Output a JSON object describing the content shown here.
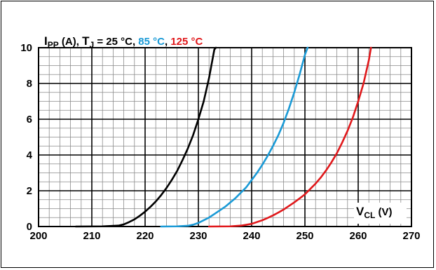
{
  "chart_data": {
    "type": "line",
    "xlim": [
      200,
      270
    ],
    "ylim": [
      0,
      10
    ],
    "x_ticks": [
      200,
      210,
      220,
      230,
      240,
      250,
      260,
      270
    ],
    "y_ticks": [
      0,
      2,
      4,
      6,
      8,
      10
    ],
    "x_ticks_text": [
      "200",
      "210",
      "220",
      "230",
      "240",
      "250",
      "260",
      "270"
    ],
    "y_ticks_text": [
      "0",
      "2",
      "4",
      "6",
      "8",
      "10"
    ],
    "grid": true,
    "ylabel": {
      "prefix_main": "I",
      "prefix_sub": "PP",
      "unit": " (A), ",
      "tj_main": "T",
      "tj_sub": "J",
      "eq": " = ",
      "t1": "25 °C",
      "sep1": ", ",
      "t2": "85 °C",
      "sep2": ", ",
      "t3": "125 °C"
    },
    "xlabel": {
      "main": "V",
      "sub": "CL",
      "unit": " (V)"
    },
    "series": [
      {
        "name": "25 °C",
        "color": "#000000",
        "points": [
          [
            207,
            0
          ],
          [
            212,
            0.01
          ],
          [
            215,
            0.05
          ],
          [
            216,
            0.12
          ],
          [
            217,
            0.25
          ],
          [
            218,
            0.4
          ],
          [
            219,
            0.6
          ],
          [
            220,
            0.83
          ],
          [
            221,
            1.1
          ],
          [
            222,
            1.4
          ],
          [
            223,
            1.75
          ],
          [
            224,
            2.15
          ],
          [
            225,
            2.6
          ],
          [
            226,
            3.1
          ],
          [
            227,
            3.7
          ],
          [
            228,
            4.35
          ],
          [
            229,
            5.1
          ],
          [
            230,
            6.0
          ],
          [
            231,
            7.0
          ],
          [
            232,
            8.3
          ],
          [
            233,
            9.9
          ],
          [
            233.3,
            10
          ]
        ]
      },
      {
        "name": "85 °C",
        "color": "#1a9ad6",
        "points": [
          [
            223,
            0
          ],
          [
            226,
            0.01
          ],
          [
            228,
            0.04
          ],
          [
            229,
            0.1
          ],
          [
            230,
            0.2
          ],
          [
            231,
            0.35
          ],
          [
            232,
            0.5
          ],
          [
            233,
            0.7
          ],
          [
            234,
            0.9
          ],
          [
            235,
            1.1
          ],
          [
            236,
            1.35
          ],
          [
            237,
            1.6
          ],
          [
            238,
            1.9
          ],
          [
            239,
            2.2
          ],
          [
            240,
            2.6
          ],
          [
            241,
            3.0
          ],
          [
            242,
            3.45
          ],
          [
            243,
            3.95
          ],
          [
            244,
            4.5
          ],
          [
            245,
            5.1
          ],
          [
            246,
            5.8
          ],
          [
            247,
            6.6
          ],
          [
            248,
            7.5
          ],
          [
            249,
            8.5
          ],
          [
            250,
            9.6
          ],
          [
            250.5,
            10
          ]
        ]
      },
      {
        "name": "125 °C",
        "color": "#e0181b",
        "points": [
          [
            232,
            0
          ],
          [
            236,
            0.01
          ],
          [
            238,
            0.05
          ],
          [
            240,
            0.15
          ],
          [
            241,
            0.25
          ],
          [
            242,
            0.35
          ],
          [
            243,
            0.48
          ],
          [
            244,
            0.62
          ],
          [
            245,
            0.78
          ],
          [
            246,
            0.95
          ],
          [
            247,
            1.15
          ],
          [
            248,
            1.35
          ],
          [
            249,
            1.57
          ],
          [
            250,
            1.8
          ],
          [
            251,
            2.1
          ],
          [
            252,
            2.4
          ],
          [
            253,
            2.75
          ],
          [
            254,
            3.15
          ],
          [
            255,
            3.6
          ],
          [
            256,
            4.1
          ],
          [
            257,
            4.7
          ],
          [
            258,
            5.35
          ],
          [
            259,
            6.1
          ],
          [
            260,
            7.0
          ],
          [
            261,
            8.0
          ],
          [
            262,
            9.3
          ],
          [
            262.4,
            10
          ]
        ]
      }
    ]
  }
}
